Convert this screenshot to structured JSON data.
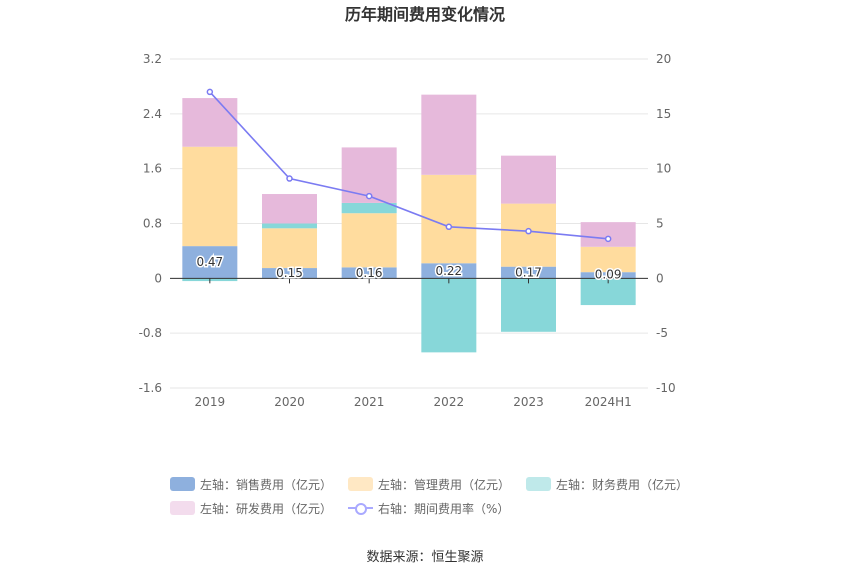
{
  "chart_data": {
    "type": "bar",
    "title": "历年期间费用变化情况",
    "categories": [
      "2019",
      "2020",
      "2021",
      "2022",
      "2023",
      "2024H1"
    ],
    "left_axis": {
      "ylim": [
        -1.6,
        3.2
      ],
      "ticks": [
        "3.2",
        "2.4",
        "1.6",
        "0.8",
        "0",
        "-0.8",
        "-1.6"
      ]
    },
    "right_axis": {
      "ylim": [
        -10,
        20
      ],
      "ticks": [
        "20",
        "15",
        "10",
        "5",
        "0",
        "-5",
        "-10"
      ]
    },
    "series": [
      {
        "name": "左轴：销售费用（亿元）",
        "axis": "left",
        "color": "#8eb0de",
        "values": [
          0.47,
          0.15,
          0.16,
          0.22,
          0.17,
          0.09
        ]
      },
      {
        "name": "左轴：管理费用（亿元）",
        "axis": "left",
        "color": "#ffdc9e",
        "values": [
          1.45,
          0.58,
          0.79,
          1.29,
          0.92,
          0.37
        ]
      },
      {
        "name": "左轴：财务费用（亿元）",
        "axis": "left",
        "color": "#87d7d9",
        "values": [
          -0.04,
          0.07,
          0.15,
          -1.08,
          -0.78,
          -0.39
        ]
      },
      {
        "name": "左轴：研发费用（亿元）",
        "axis": "left",
        "color": "#e6b9db",
        "values": [
          0.71,
          0.43,
          0.81,
          1.17,
          0.7,
          0.36
        ]
      },
      {
        "name": "右轴：期间费用率（%）",
        "axis": "right",
        "type": "line",
        "color": "#7b7bf2",
        "values": [
          17.0,
          9.1,
          7.5,
          4.7,
          4.3,
          3.6
        ]
      }
    ],
    "data_labels": [
      "0.47",
      "0.15",
      "0.16",
      "0.22",
      "0.17",
      "0.09"
    ],
    "grid": true,
    "legend_position": "bottom"
  },
  "legend": {
    "row1": [
      "左轴：销售费用（亿元）",
      "左轴：管理费用（亿元）",
      "左轴：财务费用（亿元）"
    ],
    "row2": [
      "左轴：研发费用（亿元）",
      "右轴：期间费用率（%）"
    ]
  },
  "source": "数据来源：恒生聚源"
}
